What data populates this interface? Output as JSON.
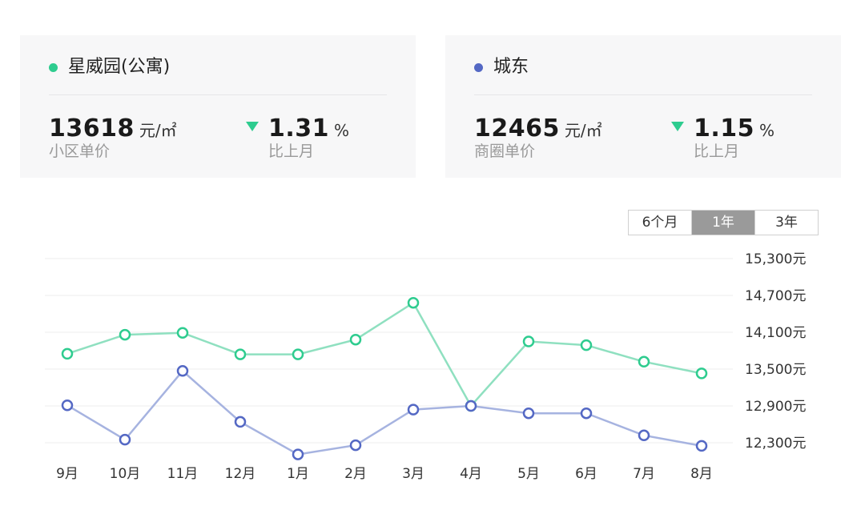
{
  "colors": {
    "community": "#2ecc8f",
    "community_line": "#8fe0c0",
    "district": "#5468c4",
    "district_line": "#a6b3e0",
    "down_arrow": "#2ecc8f",
    "grid": "#ededed",
    "active_tab_bg": "#9a9a9a"
  },
  "cards": [
    {
      "name": "星威园(公寓)",
      "price": "13618",
      "price_unit": "元/㎡",
      "price_label": "小区单价",
      "change_value": "1.31",
      "change_unit": "%",
      "change_label": "比上月",
      "change_direction": "down",
      "dot_icon": "circle-dot"
    },
    {
      "name": "城东",
      "price": "12465",
      "price_unit": "元/㎡",
      "price_label": "商圈单价",
      "change_value": "1.15",
      "change_unit": "%",
      "change_label": "比上月",
      "change_direction": "down",
      "dot_icon": "circle-dot"
    }
  ],
  "range_tabs": [
    "6个月",
    "1年",
    "3年"
  ],
  "active_range": "1年",
  "chart_data": {
    "type": "line",
    "categories": [
      "9月",
      "10月",
      "11月",
      "12月",
      "1月",
      "2月",
      "3月",
      "4月",
      "5月",
      "6月",
      "7月",
      "8月"
    ],
    "series": [
      {
        "name": "星威园(公寓)",
        "values": [
          13750,
          14060,
          14090,
          13740,
          13740,
          13980,
          14580,
          12900,
          13950,
          13890,
          13620,
          13430
        ]
      },
      {
        "name": "城东",
        "values": [
          12910,
          12350,
          13470,
          12640,
          12110,
          12260,
          12840,
          12900,
          12780,
          12780,
          12420,
          12250
        ]
      }
    ],
    "y_ticks": [
      "15,300元",
      "14,700元",
      "14,100元",
      "13,500元",
      "12,900元",
      "12,300元"
    ],
    "y_tick_values": [
      15300,
      14700,
      14100,
      13500,
      12900,
      12300
    ],
    "ylim": [
      12300,
      15300
    ],
    "grid": true,
    "y_axis_side": "right"
  }
}
